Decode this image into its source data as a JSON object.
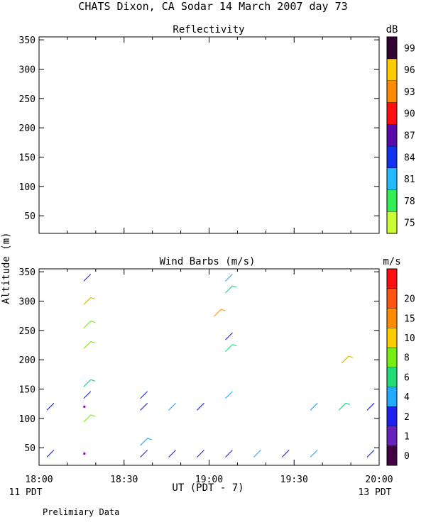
{
  "title": "CHATS Dixon, CA   Sodar   14 March 2007   day   73",
  "ylabel": "Altitude (m)",
  "xlabel": "UT  (PDT - 7)",
  "x_ticks": [
    "18:00",
    "18:30",
    "19:00",
    "19:30",
    "20:00"
  ],
  "x_left_sub": "11 PDT",
  "x_right_sub": "13 PDT",
  "footer": "Prelimiary Data",
  "chart_data": [
    {
      "type": "heatmap",
      "title": "Reflectivity",
      "xlim": [
        "18:00",
        "20:00"
      ],
      "ylim": [
        20,
        355
      ],
      "y_ticks": [
        50,
        100,
        150,
        200,
        250,
        300,
        350
      ],
      "grid": false,
      "values": [],
      "colorbar": {
        "unit": "dB",
        "labels": [
          "75",
          "78",
          "81",
          "84",
          "87",
          "90",
          "93",
          "96",
          "99"
        ],
        "colors": [
          "#ccff33",
          "#33ee55",
          "#22bbff",
          "#1133ee",
          "#5a0aa8",
          "#ff1111",
          "#ff8c00",
          "#ffcc00",
          "#330033"
        ]
      }
    },
    {
      "type": "scatter",
      "title": "Wind Barbs (m/s)",
      "xlim": [
        "18:00",
        "20:00"
      ],
      "ylim": [
        20,
        355
      ],
      "y_ticks": [
        50,
        100,
        150,
        200,
        250,
        300,
        350
      ],
      "grid": false,
      "colorbar": {
        "unit": "m/s",
        "labels": [
          "0",
          "1",
          "2",
          "4",
          "6",
          "8",
          "10",
          "15",
          "20"
        ],
        "colors": [
          "#440044",
          "#6622bb",
          "#2222ee",
          "#22aaff",
          "#22dd77",
          "#77ee11",
          "#ffcc00",
          "#ff8c00",
          "#ff5511",
          "#ff1111"
        ]
      },
      "barbs": [
        {
          "time": "18:04",
          "altitude": 40,
          "color": "#2222ee",
          "shape": "shaft"
        },
        {
          "time": "18:04",
          "altitude": 120,
          "color": "#2222ee",
          "shape": "shaft"
        },
        {
          "time": "18:16",
          "altitude": 40,
          "color": "#8800aa",
          "shape": "calm"
        },
        {
          "time": "18:16",
          "altitude": 120,
          "color": "#8800aa",
          "shape": "calm"
        },
        {
          "time": "18:17",
          "altitude": 100,
          "color": "#77ee11",
          "shape": "barb"
        },
        {
          "time": "18:17",
          "altitude": 140,
          "color": "#2222ee",
          "shape": "shaft"
        },
        {
          "time": "18:17",
          "altitude": 160,
          "color": "#22bb99",
          "shape": "barb"
        },
        {
          "time": "18:17",
          "altitude": 225,
          "color": "#77ee11",
          "shape": "barb"
        },
        {
          "time": "18:17",
          "altitude": 260,
          "color": "#77ee11",
          "shape": "barb"
        },
        {
          "time": "18:17",
          "altitude": 300,
          "color": "#ccbb00",
          "shape": "barb"
        },
        {
          "time": "18:17",
          "altitude": 340,
          "color": "#2222ee",
          "shape": "shaft"
        },
        {
          "time": "18:37",
          "altitude": 40,
          "color": "#2222ee",
          "shape": "shaft"
        },
        {
          "time": "18:37",
          "altitude": 60,
          "color": "#22aaff",
          "shape": "barb"
        },
        {
          "time": "18:37",
          "altitude": 120,
          "color": "#2222ee",
          "shape": "shaft"
        },
        {
          "time": "18:37",
          "altitude": 140,
          "color": "#2222ee",
          "shape": "shaft"
        },
        {
          "time": "18:47",
          "altitude": 40,
          "color": "#2222ee",
          "shape": "shaft"
        },
        {
          "time": "18:47",
          "altitude": 120,
          "color": "#22aaff",
          "shape": "shaft"
        },
        {
          "time": "18:57",
          "altitude": 40,
          "color": "#2222ee",
          "shape": "shaft"
        },
        {
          "time": "18:57",
          "altitude": 120,
          "color": "#2222ee",
          "shape": "shaft"
        },
        {
          "time": "19:03",
          "altitude": 280,
          "color": "#ff9900",
          "shape": "barb"
        },
        {
          "time": "19:07",
          "altitude": 40,
          "color": "#2222ee",
          "shape": "shaft"
        },
        {
          "time": "19:07",
          "altitude": 140,
          "color": "#22aaff",
          "shape": "shaft"
        },
        {
          "time": "19:07",
          "altitude": 220,
          "color": "#22dd77",
          "shape": "barb"
        },
        {
          "time": "19:07",
          "altitude": 240,
          "color": "#2222ee",
          "shape": "shaft"
        },
        {
          "time": "19:07",
          "altitude": 320,
          "color": "#22dd77",
          "shape": "barb"
        },
        {
          "time": "19:07",
          "altitude": 340,
          "color": "#22aaff",
          "shape": "shaft"
        },
        {
          "time": "19:17",
          "altitude": 40,
          "color": "#22aaff",
          "shape": "shaft"
        },
        {
          "time": "19:27",
          "altitude": 40,
          "color": "#2222ee",
          "shape": "shaft"
        },
        {
          "time": "19:37",
          "altitude": 40,
          "color": "#22aaff",
          "shape": "shaft"
        },
        {
          "time": "19:37",
          "altitude": 120,
          "color": "#22aaff",
          "shape": "shaft"
        },
        {
          "time": "19:47",
          "altitude": 120,
          "color": "#22dd77",
          "shape": "barb"
        },
        {
          "time": "19:48",
          "altitude": 200,
          "color": "#ccbb00",
          "shape": "barb"
        },
        {
          "time": "19:57",
          "altitude": 40,
          "color": "#2222ee",
          "shape": "shaft"
        },
        {
          "time": "19:57",
          "altitude": 120,
          "color": "#2222ee",
          "shape": "shaft"
        }
      ]
    }
  ]
}
